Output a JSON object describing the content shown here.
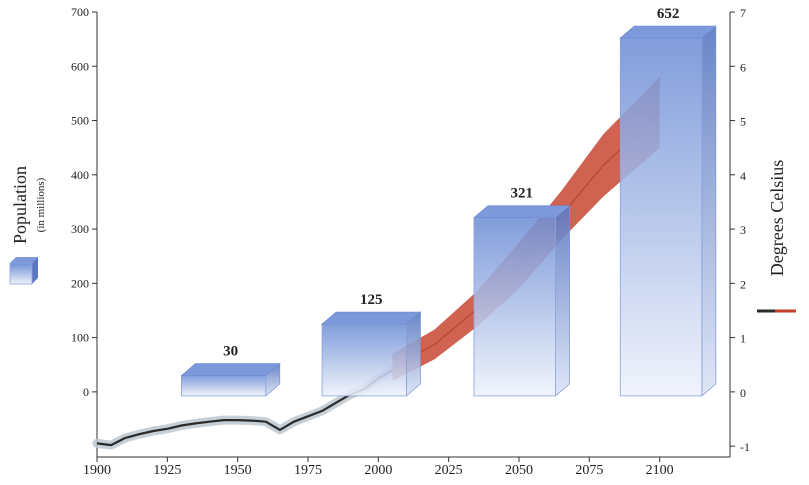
{
  "chart_data": {
    "type": "bar",
    "left_axis": {
      "title": "Population",
      "subtitle": "(in millions)",
      "ticks": [
        0,
        100,
        200,
        300,
        400,
        500,
        600,
        700
      ],
      "ylim": [
        -120,
        700
      ]
    },
    "right_axis": {
      "title": "Degrees Celsius",
      "ticks": [
        -1,
        0,
        1,
        2,
        3,
        4,
        5,
        6,
        7
      ],
      "ylim": [
        -1.2,
        7
      ]
    },
    "x_axis": {
      "ticks": [
        1900,
        1925,
        1950,
        1975,
        2000,
        2025,
        2050,
        2075,
        2100
      ],
      "xlim": [
        1900,
        2125
      ]
    },
    "population_bars": [
      {
        "x_start": 1930,
        "x_end": 1960,
        "value": 30,
        "label": "30"
      },
      {
        "x_start": 1980,
        "x_end": 2010,
        "value": 125,
        "label": "125"
      },
      {
        "x_start": 2034,
        "x_end": 2063,
        "value": 321,
        "label": "321"
      },
      {
        "x_start": 2086,
        "x_end": 2115,
        "value": 652,
        "label": "652"
      }
    ],
    "temperature_observed": {
      "x": [
        1900,
        1905,
        1910,
        1915,
        1920,
        1925,
        1930,
        1935,
        1940,
        1945,
        1950,
        1955,
        1960,
        1965,
        1970,
        1975,
        1980,
        1985,
        1990,
        1995,
        2000,
        2005
      ],
      "y": [
        -0.95,
        -0.98,
        -0.85,
        -0.78,
        -0.72,
        -0.68,
        -0.62,
        -0.58,
        -0.55,
        -0.52,
        -0.52,
        -0.53,
        -0.55,
        -0.7,
        -0.55,
        -0.45,
        -0.35,
        -0.2,
        -0.05,
        0.05,
        0.25,
        0.4
      ]
    },
    "temperature_projection": {
      "x": [
        2005,
        2020,
        2035,
        2050,
        2065,
        2080,
        2100
      ],
      "lower": [
        0.2,
        0.6,
        1.2,
        1.9,
        2.8,
        3.6,
        4.5
      ],
      "upper": [
        0.7,
        1.15,
        1.85,
        2.75,
        3.7,
        4.75,
        5.8
      ]
    },
    "legend": {
      "population_icon": "blue-3d-box-icon",
      "temperature_icon": "red-line-swatch-icon"
    },
    "colors": {
      "bar_top": "#6f8fd6",
      "bar_bottom": "#eef2fb",
      "projection": "#c4402a",
      "observed": "#2b2b2b",
      "observed_halo": "#bcc8cf"
    }
  }
}
